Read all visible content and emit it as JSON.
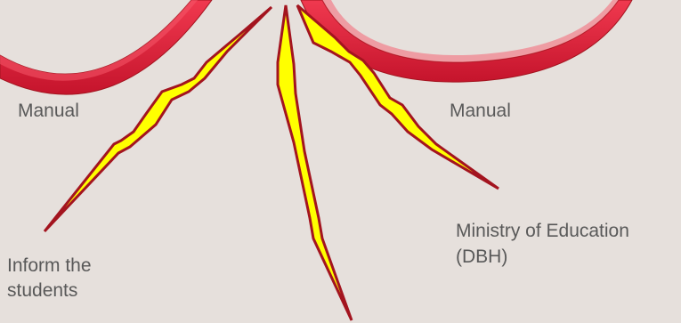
{
  "labels": {
    "manual_left": "Manual",
    "manual_right": "Manual",
    "ministry_line1": "Ministry of Education",
    "ministry_line2": "(DBH)",
    "inform_line1": "Inform the",
    "inform_line2": "students"
  },
  "colors": {
    "background": "#e6e0dc",
    "arc_fill": "#e8253c",
    "arc_shade": "#b8102a",
    "bolt_fill": "#ffff00",
    "bolt_stroke": "#a3141f",
    "text": "#595959"
  }
}
